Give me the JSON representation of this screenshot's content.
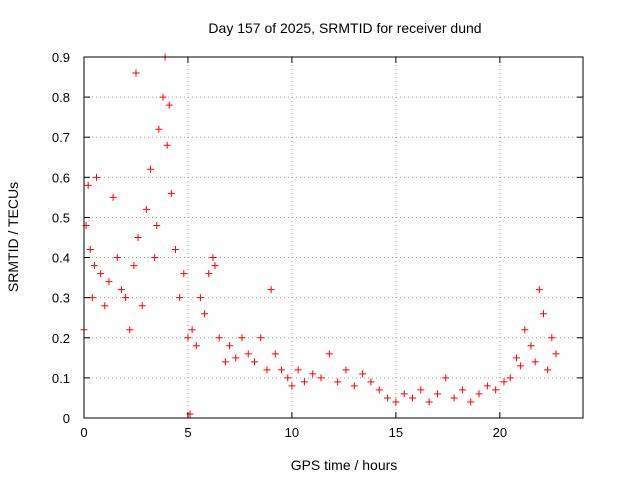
{
  "chart_data": {
    "type": "scatter",
    "title": "Day 157 of 2025, SRMTID for receiver dund",
    "xlabel": "GPS time / hours",
    "ylabel": "SRMTID / TECUs",
    "xlim": [
      0,
      24
    ],
    "ylim": [
      0,
      0.9
    ],
    "xticks": [
      0,
      5,
      10,
      15,
      20
    ],
    "yticks": [
      0,
      0.1,
      0.2,
      0.3,
      0.4,
      0.5,
      0.6,
      0.7,
      0.8,
      0.9
    ],
    "xtick_labels": [
      "0",
      "5",
      "10",
      "15",
      "20"
    ],
    "ytick_labels": [
      "0",
      "0.1",
      "0.2",
      "0.3",
      "0.4",
      "0.5",
      "0.6",
      "0.7",
      "0.8",
      "0.9"
    ],
    "grid": true,
    "marker": "+",
    "color": "#ff0000",
    "series": [
      {
        "name": "SRMTID",
        "x": [
          0.0,
          0.1,
          0.2,
          0.3,
          0.4,
          0.5,
          0.6,
          0.8,
          1.0,
          1.2,
          1.4,
          1.6,
          1.8,
          2.0,
          2.2,
          2.4,
          2.5,
          2.6,
          2.8,
          3.0,
          3.2,
          3.4,
          3.5,
          3.6,
          3.8,
          3.9,
          4.0,
          4.1,
          4.2,
          4.4,
          4.6,
          4.8,
          5.0,
          5.1,
          5.2,
          5.4,
          5.6,
          5.8,
          6.0,
          6.2,
          6.3,
          6.5,
          6.8,
          7.0,
          7.3,
          7.6,
          7.9,
          8.2,
          8.5,
          8.8,
          9.0,
          9.2,
          9.5,
          9.8,
          10.0,
          10.3,
          10.6,
          11.0,
          11.4,
          11.8,
          12.2,
          12.6,
          13.0,
          13.4,
          13.8,
          14.2,
          14.6,
          15.0,
          15.4,
          15.8,
          16.2,
          16.6,
          17.0,
          17.4,
          17.8,
          18.2,
          18.6,
          19.0,
          19.4,
          19.8,
          20.2,
          20.5,
          20.8,
          21.0,
          21.2,
          21.5,
          21.7,
          21.9,
          22.1,
          22.3,
          22.5,
          22.7
        ],
        "y": [
          0.22,
          0.48,
          0.58,
          0.42,
          0.3,
          0.38,
          0.6,
          0.36,
          0.28,
          0.34,
          0.55,
          0.4,
          0.32,
          0.3,
          0.22,
          0.38,
          0.86,
          0.45,
          0.28,
          0.52,
          0.62,
          0.4,
          0.48,
          0.72,
          0.8,
          0.9,
          0.68,
          0.78,
          0.56,
          0.42,
          0.3,
          0.36,
          0.2,
          0.01,
          0.22,
          0.18,
          0.3,
          0.26,
          0.36,
          0.4,
          0.38,
          0.2,
          0.14,
          0.18,
          0.15,
          0.2,
          0.16,
          0.14,
          0.2,
          0.12,
          0.32,
          0.16,
          0.12,
          0.1,
          0.08,
          0.12,
          0.09,
          0.11,
          0.1,
          0.16,
          0.09,
          0.12,
          0.08,
          0.11,
          0.09,
          0.07,
          0.05,
          0.04,
          0.06,
          0.05,
          0.07,
          0.04,
          0.06,
          0.1,
          0.05,
          0.07,
          0.04,
          0.06,
          0.08,
          0.07,
          0.09,
          0.1,
          0.15,
          0.13,
          0.22,
          0.18,
          0.14,
          0.32,
          0.26,
          0.12,
          0.2,
          0.16
        ]
      }
    ]
  }
}
